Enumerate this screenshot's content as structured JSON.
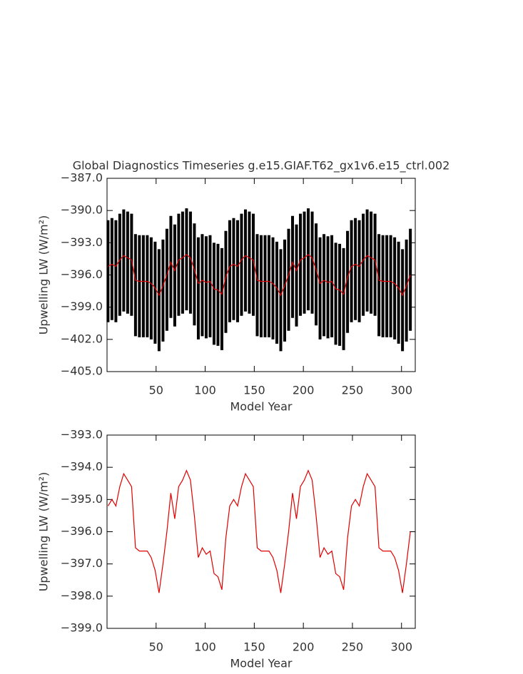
{
  "charts": [
    {
      "type": "line",
      "title": "Global Diagnostics Timeseries g.e15.GIAF.T62_gx1v6.e15_ctrl.002",
      "x_label": "Model Year",
      "y_label": "Upwelling LW (W/m²)",
      "xlim": [
        0,
        314
      ],
      "xticks": [
        50,
        100,
        150,
        200,
        250,
        300
      ],
      "ylim": [
        -405,
        -387
      ],
      "yticks": [
        {
          "value": -405,
          "label": "−405.0"
        },
        {
          "value": -402,
          "label": "−402.0"
        },
        {
          "value": -399,
          "label": "−399.0"
        },
        {
          "value": -396,
          "label": "−396.0"
        },
        {
          "value": -393,
          "label": "−393.0"
        },
        {
          "value": -390,
          "label": "−390.0"
        },
        {
          "value": -387,
          "label": "−387.0"
        }
      ],
      "x": [
        1,
        5,
        9,
        13,
        17,
        21,
        25,
        29,
        33,
        37,
        41,
        45,
        49,
        53,
        57,
        61,
        65,
        69,
        73,
        77,
        81,
        85,
        89,
        93,
        97,
        101,
        105,
        109,
        113,
        117,
        121,
        125,
        129,
        133,
        137,
        141,
        145,
        149,
        153,
        157,
        161,
        165,
        169,
        173,
        177,
        181,
        185,
        189,
        193,
        197,
        201,
        205,
        209,
        213,
        217,
        221,
        225,
        229,
        233,
        237,
        241,
        245,
        249,
        253,
        257,
        261,
        265,
        269,
        273,
        277,
        281,
        285,
        289,
        293,
        297,
        301,
        305,
        309
      ],
      "range": {
        "color": "#000000",
        "high": [
          -390.9,
          -390.7,
          -390.9,
          -390.3,
          -389.9,
          -390.1,
          -390.3,
          -392.2,
          -392.3,
          -392.3,
          -392.3,
          -392.5,
          -392.9,
          -393.6,
          -392.7,
          -391.7,
          -390.5,
          -391.3,
          -390.3,
          -390.1,
          -389.8,
          -390.1,
          -391.2,
          -392.5,
          -392.2,
          -392.4,
          -392.3,
          -393.0,
          -393.1,
          -393.5,
          -391.9,
          -390.9,
          -390.7,
          -390.9,
          -390.3,
          -389.9,
          -390.1,
          -390.3,
          -392.2,
          -392.3,
          -392.3,
          -392.3,
          -392.5,
          -392.9,
          -393.6,
          -392.7,
          -391.7,
          -390.5,
          -391.3,
          -390.3,
          -390.1,
          -389.8,
          -390.1,
          -391.2,
          -392.5,
          -392.2,
          -392.4,
          -392.3,
          -393.0,
          -393.1,
          -393.5,
          -391.9,
          -390.9,
          -390.7,
          -390.9,
          -390.3,
          -389.9,
          -390.1,
          -390.3,
          -392.2,
          -392.3,
          -392.3,
          -392.3,
          -392.5,
          -392.9,
          -393.6,
          -392.7,
          -391.7
        ],
        "low": [
          -400.4,
          -400.2,
          -400.4,
          -399.8,
          -399.4,
          -399.6,
          -399.8,
          -401.7,
          -401.8,
          -401.8,
          -401.8,
          -402.0,
          -402.4,
          -403.1,
          -402.2,
          -401.2,
          -400.0,
          -400.8,
          -399.8,
          -399.6,
          -399.3,
          -399.6,
          -400.7,
          -402.0,
          -401.7,
          -401.9,
          -401.8,
          -402.5,
          -402.6,
          -403.0,
          -401.4,
          -400.4,
          -400.2,
          -400.4,
          -399.8,
          -399.4,
          -399.6,
          -399.8,
          -401.7,
          -401.8,
          -401.8,
          -401.8,
          -402.0,
          -402.4,
          -403.1,
          -402.2,
          -401.2,
          -400.0,
          -400.8,
          -399.8,
          -399.6,
          -399.3,
          -399.6,
          -400.7,
          -402.0,
          -401.7,
          -401.9,
          -401.8,
          -402.5,
          -402.6,
          -403.0,
          -401.4,
          -400.4,
          -400.2,
          -400.4,
          -399.8,
          -399.4,
          -399.6,
          -399.8,
          -401.7,
          -401.8,
          -401.8,
          -401.8,
          -402.0,
          -402.4,
          -403.1,
          -402.2,
          -401.2
        ]
      },
      "series": [
        {
          "color": "#e00000",
          "values": [
            -395.2,
            -395.0,
            -395.2,
            -394.6,
            -394.2,
            -394.4,
            -394.6,
            -396.5,
            -396.6,
            -396.6,
            -396.6,
            -396.8,
            -397.2,
            -397.9,
            -397.0,
            -396.0,
            -394.8,
            -395.6,
            -394.6,
            -394.4,
            -394.1,
            -394.4,
            -395.5,
            -396.8,
            -396.5,
            -396.7,
            -396.6,
            -397.3,
            -397.4,
            -397.8,
            -396.2,
            -395.2,
            -395.0,
            -395.2,
            -394.6,
            -394.2,
            -394.4,
            -394.6,
            -396.5,
            -396.6,
            -396.6,
            -396.6,
            -396.8,
            -397.2,
            -397.9,
            -397.0,
            -396.0,
            -394.8,
            -395.6,
            -394.6,
            -394.4,
            -394.1,
            -394.4,
            -395.5,
            -396.8,
            -396.5,
            -396.7,
            -396.6,
            -397.3,
            -397.4,
            -397.8,
            -396.2,
            -395.2,
            -395.0,
            -395.2,
            -394.6,
            -394.2,
            -394.4,
            -394.6,
            -396.5,
            -396.6,
            -396.6,
            -396.6,
            -396.8,
            -397.2,
            -397.9,
            -397.0,
            -396.0
          ]
        }
      ]
    },
    {
      "type": "line",
      "x_label": "Model Year",
      "y_label": "Upwelling LW (W/m²)",
      "xlim": [
        0,
        314
      ],
      "xticks": [
        50,
        100,
        150,
        200,
        250,
        300
      ],
      "ylim": [
        -399,
        -393
      ],
      "yticks": [
        {
          "value": -399,
          "label": "−399.0"
        },
        {
          "value": -398,
          "label": "−398.0"
        },
        {
          "value": -397,
          "label": "−397.0"
        },
        {
          "value": -396,
          "label": "−396.0"
        },
        {
          "value": -395,
          "label": "−395.0"
        },
        {
          "value": -394,
          "label": "−394.0"
        },
        {
          "value": -393,
          "label": "−393.0"
        }
      ],
      "x": [
        1,
        5,
        9,
        13,
        17,
        21,
        25,
        29,
        33,
        37,
        41,
        45,
        49,
        53,
        57,
        61,
        65,
        69,
        73,
        77,
        81,
        85,
        89,
        93,
        97,
        101,
        105,
        109,
        113,
        117,
        121,
        125,
        129,
        133,
        137,
        141,
        145,
        149,
        153,
        157,
        161,
        165,
        169,
        173,
        177,
        181,
        185,
        189,
        193,
        197,
        201,
        205,
        209,
        213,
        217,
        221,
        225,
        229,
        233,
        237,
        241,
        245,
        249,
        253,
        257,
        261,
        265,
        269,
        273,
        277,
        281,
        285,
        289,
        293,
        297,
        301,
        305,
        309
      ],
      "series": [
        {
          "color": "#e00000",
          "values": [
            -395.2,
            -395.0,
            -395.2,
            -394.6,
            -394.2,
            -394.4,
            -394.6,
            -396.5,
            -396.6,
            -396.6,
            -396.6,
            -396.8,
            -397.2,
            -397.9,
            -397.0,
            -396.0,
            -394.8,
            -395.6,
            -394.6,
            -394.4,
            -394.1,
            -394.4,
            -395.5,
            -396.8,
            -396.5,
            -396.7,
            -396.6,
            -397.3,
            -397.4,
            -397.8,
            -396.2,
            -395.2,
            -395.0,
            -395.2,
            -394.6,
            -394.2,
            -394.4,
            -394.6,
            -396.5,
            -396.6,
            -396.6,
            -396.6,
            -396.8,
            -397.2,
            -397.9,
            -397.0,
            -396.0,
            -394.8,
            -395.6,
            -394.6,
            -394.4,
            -394.1,
            -394.4,
            -395.5,
            -396.8,
            -396.5,
            -396.7,
            -396.6,
            -397.3,
            -397.4,
            -397.8,
            -396.2,
            -395.2,
            -395.0,
            -395.2,
            -394.6,
            -394.2,
            -394.4,
            -394.6,
            -396.5,
            -396.6,
            -396.6,
            -396.6,
            -396.8,
            -397.2,
            -397.9,
            -397.0,
            -396.0
          ]
        }
      ]
    }
  ]
}
